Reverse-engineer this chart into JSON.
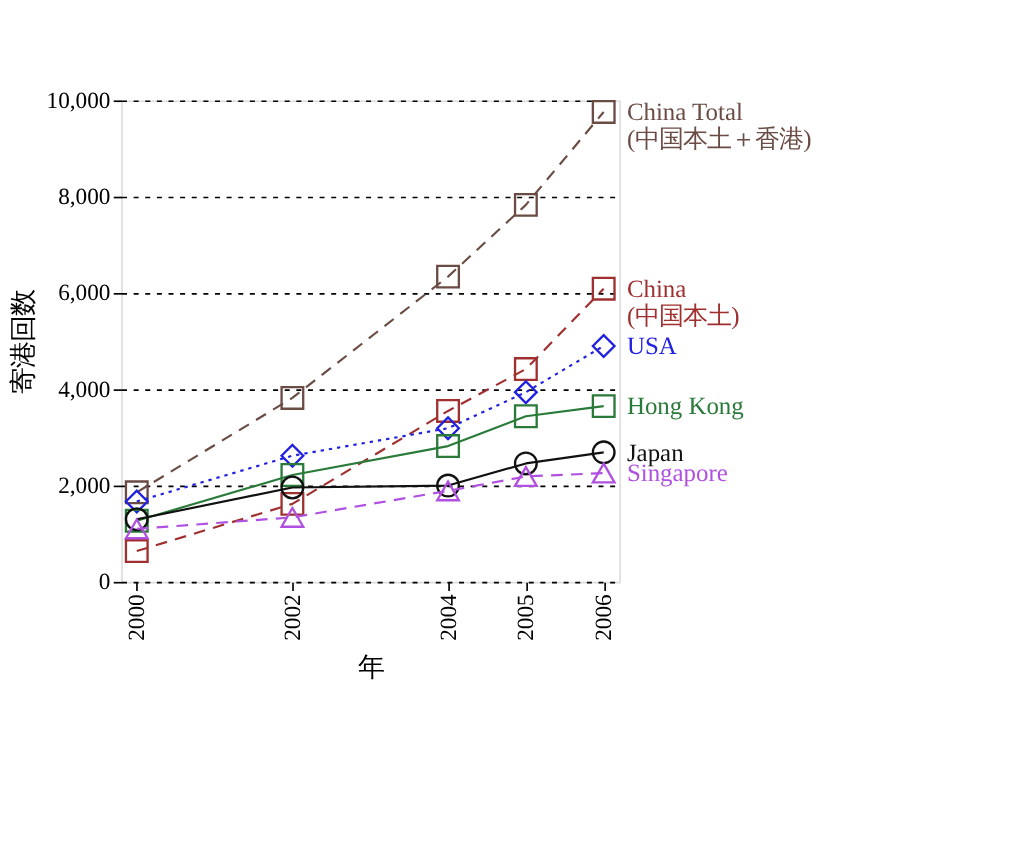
{
  "chart_data": {
    "type": "line",
    "xlabel": "年",
    "ylabel": "寄港回数",
    "x": [
      2000,
      2002,
      2004,
      2005,
      2006
    ],
    "xlim": [
      1999.8,
      2006.2
    ],
    "xticks": [
      2000,
      2002,
      2004,
      2005,
      2006
    ],
    "ylim": [
      0,
      10000
    ],
    "yticks": [
      {
        "value": 0,
        "label": "0"
      },
      {
        "value": 2000,
        "label": "2,000"
      },
      {
        "value": 4000,
        "label": "4,000"
      },
      {
        "value": 6000,
        "label": "6,000"
      },
      {
        "value": 8000,
        "label": "8,000"
      },
      {
        "value": 10000,
        "label": "10,000"
      }
    ],
    "grid": "y",
    "legend": false,
    "series": [
      {
        "name": "China Total\n(中国本土＋香港)",
        "color": "#6b4c45",
        "marker": "square",
        "line_style": "dashed",
        "values": [
          1860,
          3820,
          6340,
          7830,
          9760
        ]
      },
      {
        "name": "China\n(中国本土)",
        "color": "#a03030",
        "marker": "square",
        "line_style": "dashed",
        "values": [
          640,
          1620,
          3550,
          4420,
          6090
        ]
      },
      {
        "name": "USA",
        "color": "#2020e0",
        "marker": "diamond",
        "line_style": "dotted",
        "values": [
          1670,
          2620,
          3190,
          3940,
          4900
        ]
      },
      {
        "name": "Hong Kong",
        "color": "#2a7a3a",
        "marker": "square",
        "line_style": "solid",
        "values": [
          1270,
          2220,
          2820,
          3440,
          3650
        ]
      },
      {
        "name": "Japan",
        "color": "#111111",
        "marker": "circle",
        "line_style": "solid",
        "values": [
          1300,
          1960,
          2000,
          2460,
          2690
        ]
      },
      {
        "name": "Singapore",
        "color": "#b050e0",
        "marker": "triangle",
        "line_style": "dashed",
        "values": [
          1100,
          1340,
          1890,
          2190,
          2260
        ]
      }
    ]
  }
}
